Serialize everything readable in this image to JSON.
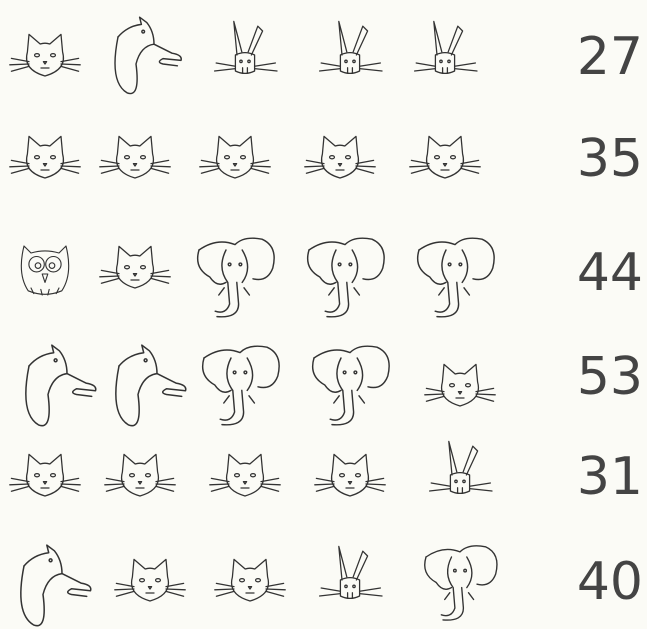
{
  "rows": [
    {
      "total": 27
    },
    {
      "total": 35
    },
    {
      "total": 44
    },
    {
      "total": 53
    },
    {
      "total": 31
    },
    {
      "total": 40
    }
  ]
}
